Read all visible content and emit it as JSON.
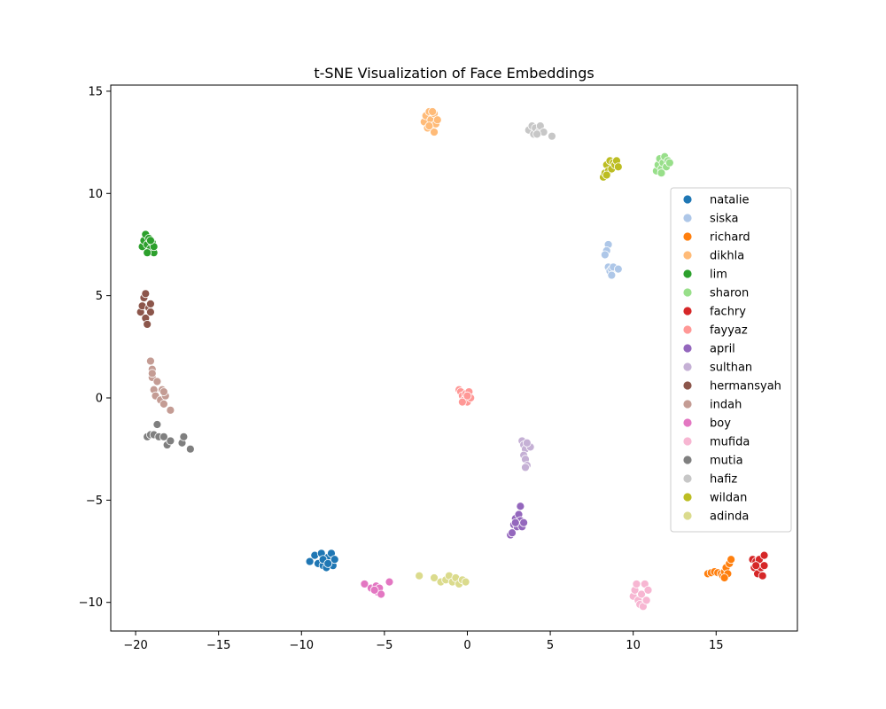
{
  "chart_data": {
    "type": "scatter",
    "title": "t-SNE Visualization of Face Embeddings",
    "xlabel": "",
    "ylabel": "",
    "xlim": [
      -21.5,
      19.9
    ],
    "ylim": [
      -11.4,
      15.3
    ],
    "xticks": [
      -20,
      -15,
      -10,
      -5,
      0,
      5,
      10,
      15
    ],
    "xtick_labels": [
      "−20",
      "−15",
      "−10",
      "−5",
      "0",
      "5",
      "10",
      "15"
    ],
    "yticks": [
      -10,
      -5,
      0,
      5,
      10,
      15
    ],
    "ytick_labels": [
      "−10",
      "−5",
      "0",
      "5",
      "10",
      "15"
    ],
    "grid": false,
    "legend_position": "right",
    "series": [
      {
        "name": "natalie",
        "color": "#1f77b4",
        "points": [
          [
            -9.5,
            -8.0
          ],
          [
            -9.2,
            -7.7
          ],
          [
            -9.0,
            -8.1
          ],
          [
            -8.8,
            -7.6
          ],
          [
            -8.7,
            -8.2
          ],
          [
            -8.6,
            -7.9
          ],
          [
            -8.5,
            -8.3
          ],
          [
            -8.4,
            -7.8
          ],
          [
            -8.3,
            -8.1
          ],
          [
            -8.2,
            -7.6
          ],
          [
            -8.1,
            -8.2
          ],
          [
            -8.0,
            -7.9
          ],
          [
            -8.7,
            -7.9
          ],
          [
            -8.4,
            -8.1
          ]
        ]
      },
      {
        "name": "siska",
        "color": "#aec7e8",
        "points": [
          [
            8.5,
            7.5
          ],
          [
            8.4,
            7.2
          ],
          [
            8.3,
            7.0
          ],
          [
            8.5,
            6.4
          ],
          [
            8.6,
            6.2
          ],
          [
            8.7,
            6.3
          ],
          [
            8.8,
            6.4
          ],
          [
            8.7,
            6.0
          ],
          [
            9.1,
            6.3
          ]
        ]
      },
      {
        "name": "richard",
        "color": "#ff7f0e",
        "points": [
          [
            14.5,
            -8.6
          ],
          [
            14.7,
            -8.55
          ],
          [
            14.9,
            -8.5
          ],
          [
            15.1,
            -8.55
          ],
          [
            15.3,
            -8.6
          ],
          [
            15.4,
            -8.7
          ],
          [
            15.5,
            -8.5
          ],
          [
            15.6,
            -8.3
          ],
          [
            15.7,
            -8.6
          ],
          [
            15.8,
            -8.1
          ],
          [
            15.9,
            -7.9
          ],
          [
            15.5,
            -8.8
          ]
        ]
      },
      {
        "name": "dikhla",
        "color": "#ffbb78",
        "points": [
          [
            -2.6,
            13.5
          ],
          [
            -2.5,
            13.8
          ],
          [
            -2.4,
            13.2
          ],
          [
            -2.3,
            14.0
          ],
          [
            -2.2,
            13.6
          ],
          [
            -2.1,
            13.3
          ],
          [
            -2.0,
            13.9
          ],
          [
            -1.9,
            13.4
          ],
          [
            -2.0,
            13.0
          ],
          [
            -1.8,
            13.6
          ],
          [
            -2.3,
            13.3
          ],
          [
            -2.1,
            14.0
          ]
        ]
      },
      {
        "name": "lim",
        "color": "#2ca02c",
        "points": [
          [
            -19.6,
            7.4
          ],
          [
            -19.5,
            7.7
          ],
          [
            -19.4,
            8.0
          ],
          [
            -19.3,
            7.5
          ],
          [
            -19.2,
            7.8
          ],
          [
            -19.1,
            7.3
          ],
          [
            -19.0,
            7.6
          ],
          [
            -18.9,
            7.1
          ],
          [
            -18.9,
            7.4
          ],
          [
            -19.3,
            7.1
          ],
          [
            -19.1,
            7.7
          ]
        ]
      },
      {
        "name": "sharon",
        "color": "#98df8a",
        "points": [
          [
            11.4,
            11.1
          ],
          [
            11.5,
            11.4
          ],
          [
            11.6,
            11.7
          ],
          [
            11.7,
            11.2
          ],
          [
            11.8,
            11.5
          ],
          [
            11.9,
            11.8
          ],
          [
            12.0,
            11.3
          ],
          [
            12.1,
            11.6
          ],
          [
            12.2,
            11.5
          ],
          [
            11.7,
            11.0
          ]
        ]
      },
      {
        "name": "fachry",
        "color": "#d62728",
        "points": [
          [
            17.2,
            -7.9
          ],
          [
            17.3,
            -8.3
          ],
          [
            17.4,
            -8.0
          ],
          [
            17.5,
            -8.6
          ],
          [
            17.6,
            -7.9
          ],
          [
            17.7,
            -8.3
          ],
          [
            17.8,
            -8.7
          ],
          [
            17.9,
            -7.7
          ],
          [
            17.9,
            -8.2
          ],
          [
            17.4,
            -8.2
          ]
        ]
      },
      {
        "name": "fayyaz",
        "color": "#ff9896",
        "points": [
          [
            -0.5,
            0.4
          ],
          [
            -0.4,
            0.3
          ],
          [
            -0.3,
            0.1
          ],
          [
            -0.2,
            -0.1
          ],
          [
            -0.1,
            0.2
          ],
          [
            0.0,
            -0.2
          ],
          [
            0.1,
            0.3
          ],
          [
            0.2,
            0.0
          ],
          [
            -0.3,
            -0.2
          ],
          [
            0.0,
            0.1
          ]
        ]
      },
      {
        "name": "april",
        "color": "#9467bd",
        "points": [
          [
            2.6,
            -6.7
          ],
          [
            2.7,
            -6.6
          ],
          [
            2.8,
            -6.2
          ],
          [
            2.9,
            -5.9
          ],
          [
            3.0,
            -6.3
          ],
          [
            3.1,
            -5.7
          ],
          [
            3.2,
            -6.0
          ],
          [
            3.3,
            -6.3
          ],
          [
            3.2,
            -5.3
          ],
          [
            3.4,
            -6.1
          ],
          [
            2.9,
            -6.1
          ]
        ]
      },
      {
        "name": "sulthan",
        "color": "#c5b0d5",
        "points": [
          [
            3.3,
            -2.1
          ],
          [
            3.4,
            -2.3
          ],
          [
            3.5,
            -2.5
          ],
          [
            3.4,
            -2.8
          ],
          [
            3.5,
            -3.0
          ],
          [
            3.6,
            -3.3
          ],
          [
            3.5,
            -3.4
          ],
          [
            3.8,
            -2.4
          ],
          [
            3.6,
            -2.2
          ]
        ]
      },
      {
        "name": "hermansyah",
        "color": "#8c564b",
        "points": [
          [
            -19.7,
            4.2
          ],
          [
            -19.6,
            4.5
          ],
          [
            -19.5,
            4.9
          ],
          [
            -19.4,
            5.1
          ],
          [
            -19.4,
            3.9
          ],
          [
            -19.3,
            3.6
          ],
          [
            -19.2,
            4.4
          ],
          [
            -19.1,
            4.6
          ],
          [
            -19.1,
            4.2
          ]
        ]
      },
      {
        "name": "indah",
        "color": "#c49c94",
        "points": [
          [
            -19.1,
            1.8
          ],
          [
            -19.0,
            1.4
          ],
          [
            -19.0,
            1.0
          ],
          [
            -18.9,
            0.4
          ],
          [
            -18.8,
            0.1
          ],
          [
            -18.7,
            0.8
          ],
          [
            -18.5,
            -0.1
          ],
          [
            -18.4,
            0.4
          ],
          [
            -18.3,
            -0.3
          ],
          [
            -18.2,
            0.1
          ],
          [
            -18.3,
            0.3
          ],
          [
            -17.9,
            -0.6
          ],
          [
            -19.0,
            1.2
          ]
        ]
      },
      {
        "name": "boy",
        "color": "#e377c2",
        "points": [
          [
            -6.2,
            -9.1
          ],
          [
            -5.8,
            -9.3
          ],
          [
            -5.5,
            -9.2
          ],
          [
            -5.4,
            -9.5
          ],
          [
            -5.3,
            -9.3
          ],
          [
            -5.2,
            -9.6
          ],
          [
            -4.7,
            -9.0
          ],
          [
            -5.6,
            -9.4
          ]
        ]
      },
      {
        "name": "mufida",
        "color": "#f7b6d2",
        "points": [
          [
            10.0,
            -9.7
          ],
          [
            10.1,
            -9.4
          ],
          [
            10.2,
            -9.1
          ],
          [
            10.3,
            -9.9
          ],
          [
            10.4,
            -10.1
          ],
          [
            10.5,
            -9.6
          ],
          [
            10.6,
            -10.2
          ],
          [
            10.7,
            -9.1
          ],
          [
            10.8,
            -9.9
          ],
          [
            10.9,
            -9.4
          ]
        ]
      },
      {
        "name": "mutia",
        "color": "#7f7f7f",
        "points": [
          [
            -19.3,
            -1.9
          ],
          [
            -19.1,
            -1.8
          ],
          [
            -18.9,
            -1.8
          ],
          [
            -18.7,
            -1.3
          ],
          [
            -18.6,
            -1.9
          ],
          [
            -18.1,
            -2.3
          ],
          [
            -17.9,
            -2.1
          ],
          [
            -17.2,
            -2.2
          ],
          [
            -17.1,
            -1.9
          ],
          [
            -16.7,
            -2.5
          ],
          [
            -18.3,
            -1.9
          ]
        ]
      },
      {
        "name": "hafiz",
        "color": "#c7c7c7",
        "points": [
          [
            3.7,
            13.1
          ],
          [
            3.9,
            13.3
          ],
          [
            4.0,
            12.9
          ],
          [
            4.1,
            13.2
          ],
          [
            4.3,
            13.0
          ],
          [
            4.4,
            13.3
          ],
          [
            4.6,
            13.0
          ],
          [
            5.1,
            12.8
          ],
          [
            4.2,
            12.9
          ]
        ]
      },
      {
        "name": "wildan",
        "color": "#bcbd22",
        "points": [
          [
            8.2,
            10.8
          ],
          [
            8.3,
            11.0
          ],
          [
            8.4,
            11.4
          ],
          [
            8.5,
            11.1
          ],
          [
            8.6,
            11.6
          ],
          [
            8.7,
            11.2
          ],
          [
            8.8,
            11.5
          ],
          [
            8.9,
            11.4
          ],
          [
            9.0,
            11.6
          ],
          [
            9.1,
            11.3
          ],
          [
            8.4,
            10.9
          ]
        ]
      },
      {
        "name": "adinda",
        "color": "#dbdb8d",
        "points": [
          [
            -2.9,
            -8.7
          ],
          [
            -2.0,
            -8.8
          ],
          [
            -1.6,
            -9.0
          ],
          [
            -1.3,
            -8.9
          ],
          [
            -1.1,
            -8.7
          ],
          [
            -0.9,
            -9.0
          ],
          [
            -0.7,
            -8.8
          ],
          [
            -0.5,
            -9.1
          ],
          [
            -0.3,
            -8.9
          ],
          [
            -0.1,
            -9.0
          ]
        ]
      }
    ]
  }
}
